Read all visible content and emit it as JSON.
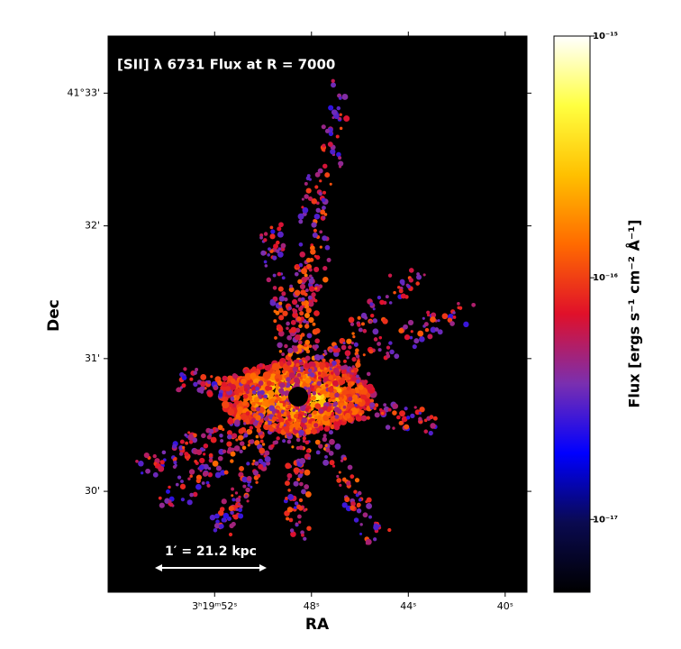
{
  "chart_data": {
    "type": "image",
    "title": "[SII] λ 6731 Flux at R = 7000",
    "x_label": "RA",
    "y_label": "Dec",
    "xlim": [
      56.4,
      39.1
    ],
    "xticks": [
      {
        "value": 52,
        "label": "3ʰ19ᵐ52ˢ"
      },
      {
        "value": 48,
        "label": "48ˢ"
      },
      {
        "value": 44,
        "label": "44ˢ"
      },
      {
        "value": 40,
        "label": "40ˢ"
      }
    ],
    "ylim": [
      29.24,
      33.43
    ],
    "yticks": [
      {
        "value": 33,
        "label": "41°33'"
      },
      {
        "value": 32,
        "label": "32'"
      },
      {
        "value": 31,
        "label": "31'"
      },
      {
        "value": 30,
        "label": "30'"
      }
    ],
    "clabel": "Flux [ergs s⁻¹ cm⁻² Å⁻¹]",
    "clim": [
      5e-18,
      1e-15
    ],
    "clog": true,
    "cticks": [
      {
        "value": 1e-15,
        "label": "10⁻¹⁵"
      },
      {
        "value": 1e-16,
        "label": "10⁻¹⁶"
      },
      {
        "value": 1e-17,
        "label": "10⁻¹⁷"
      }
    ],
    "colormap": [
      "#000000",
      "#0a0a50",
      "#0000ff",
      "#7a2fb0",
      "#e0102a",
      "#ff6a00",
      "#ffc000",
      "#ffff40",
      "#ffffff"
    ],
    "annotations": [
      "1′ = 21.2 kpc"
    ]
  }
}
